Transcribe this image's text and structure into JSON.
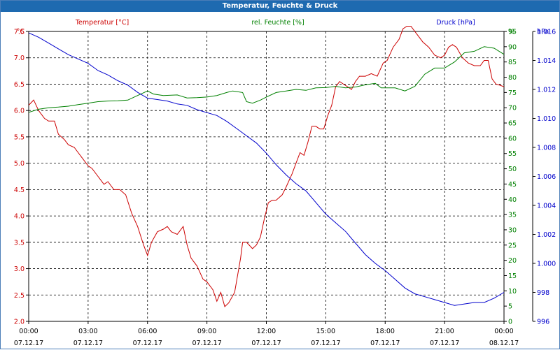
{
  "window": {
    "title": "Temperatur, Feuchte & Druck"
  },
  "chart_data": {
    "type": "line",
    "title": "Temperatur, Feuchte & Druck",
    "grid": true,
    "x_axis": {
      "ticks": [
        {
          "time": "00:00",
          "date": "07.12.17"
        },
        {
          "time": "03:00",
          "date": "07.12.17"
        },
        {
          "time": "06:00",
          "date": "07.12.17"
        },
        {
          "time": "09:00",
          "date": "07.12.17"
        },
        {
          "time": "12:00",
          "date": "07.12.17"
        },
        {
          "time": "15:00",
          "date": "07.12.17"
        },
        {
          "time": "18:00",
          "date": "07.12.17"
        },
        {
          "time": "21:00",
          "date": "07.12.17"
        },
        {
          "time": "00:00",
          "date": "08.12.17"
        }
      ],
      "range_hours": [
        0,
        24
      ]
    },
    "axes": {
      "temperature": {
        "unit": "°C",
        "min": 2.0,
        "max": 7.5,
        "ticks": [
          "2.0",
          "2.5",
          "3.0",
          "3.5",
          "4.0",
          "4.5",
          "5.0",
          "5.5",
          "6.0",
          "6.5",
          "7.0",
          "7.5"
        ]
      },
      "humidity": {
        "unit": "%",
        "min": 0,
        "max": 95,
        "ticks": [
          "0",
          "5",
          "10",
          "15",
          "20",
          "25",
          "30",
          "35",
          "40",
          "45",
          "50",
          "55",
          "60",
          "65",
          "70",
          "75",
          "80",
          "85",
          "90",
          "95"
        ]
      },
      "pressure": {
        "unit": "hPa",
        "min": 996,
        "max": 1016,
        "ticks": [
          "996",
          "998",
          "1.000",
          "1.002",
          "1.004",
          "1.006",
          "1.008",
          "1.010",
          "1.012",
          "1.014",
          "1.016"
        ]
      }
    },
    "colors": {
      "temperature": "#cc0000",
      "humidity": "#008000",
      "pressure": "#0000cc",
      "titlebar": "#1e6ab0"
    },
    "series": [
      {
        "name": "Temperatur [°C]",
        "axis": "temperature",
        "points": [
          [
            0,
            6.1
          ],
          [
            0.25,
            6.2
          ],
          [
            0.5,
            6.0
          ],
          [
            0.8,
            5.85
          ],
          [
            1.0,
            5.8
          ],
          [
            1.3,
            5.8
          ],
          [
            1.5,
            5.55
          ],
          [
            1.8,
            5.45
          ],
          [
            2.0,
            5.35
          ],
          [
            2.3,
            5.3
          ],
          [
            2.5,
            5.2
          ],
          [
            2.7,
            5.1
          ],
          [
            3.0,
            4.95
          ],
          [
            3.2,
            4.9
          ],
          [
            3.5,
            4.75
          ],
          [
            3.8,
            4.6
          ],
          [
            4.0,
            4.65
          ],
          [
            4.3,
            4.5
          ],
          [
            4.6,
            4.5
          ],
          [
            4.9,
            4.4
          ],
          [
            5.2,
            4.05
          ],
          [
            5.5,
            3.8
          ],
          [
            5.8,
            3.45
          ],
          [
            6.0,
            3.25
          ],
          [
            6.2,
            3.5
          ],
          [
            6.5,
            3.7
          ],
          [
            6.8,
            3.75
          ],
          [
            7.0,
            3.8
          ],
          [
            7.2,
            3.7
          ],
          [
            7.5,
            3.65
          ],
          [
            7.8,
            3.8
          ],
          [
            8.0,
            3.45
          ],
          [
            8.2,
            3.2
          ],
          [
            8.5,
            3.05
          ],
          [
            8.8,
            2.8
          ],
          [
            9.0,
            2.75
          ],
          [
            9.3,
            2.6
          ],
          [
            9.5,
            2.38
          ],
          [
            9.7,
            2.55
          ],
          [
            9.9,
            2.28
          ],
          [
            10.1,
            2.35
          ],
          [
            10.4,
            2.55
          ],
          [
            10.7,
            3.2
          ],
          [
            10.8,
            3.5
          ],
          [
            11.0,
            3.5
          ],
          [
            11.3,
            3.38
          ],
          [
            11.5,
            3.45
          ],
          [
            11.7,
            3.6
          ],
          [
            11.9,
            3.95
          ],
          [
            12.1,
            4.25
          ],
          [
            12.3,
            4.3
          ],
          [
            12.5,
            4.3
          ],
          [
            12.8,
            4.4
          ],
          [
            13.0,
            4.55
          ],
          [
            13.3,
            4.8
          ],
          [
            13.5,
            5.0
          ],
          [
            13.7,
            5.2
          ],
          [
            13.9,
            5.15
          ],
          [
            14.1,
            5.4
          ],
          [
            14.3,
            5.7
          ],
          [
            14.5,
            5.7
          ],
          [
            14.7,
            5.65
          ],
          [
            14.9,
            5.65
          ],
          [
            15.1,
            5.9
          ],
          [
            15.3,
            6.1
          ],
          [
            15.5,
            6.45
          ],
          [
            15.7,
            6.55
          ],
          [
            15.9,
            6.5
          ],
          [
            16.1,
            6.45
          ],
          [
            16.3,
            6.4
          ],
          [
            16.5,
            6.55
          ],
          [
            16.7,
            6.65
          ],
          [
            17.0,
            6.65
          ],
          [
            17.3,
            6.7
          ],
          [
            17.6,
            6.65
          ],
          [
            17.9,
            6.9
          ],
          [
            18.1,
            6.95
          ],
          [
            18.4,
            7.2
          ],
          [
            18.7,
            7.35
          ],
          [
            18.9,
            7.55
          ],
          [
            19.1,
            7.6
          ],
          [
            19.3,
            7.6
          ],
          [
            19.6,
            7.45
          ],
          [
            19.9,
            7.3
          ],
          [
            20.2,
            7.2
          ],
          [
            20.5,
            7.05
          ],
          [
            20.8,
            7.0
          ],
          [
            21.0,
            7.05
          ],
          [
            21.2,
            7.2
          ],
          [
            21.4,
            7.25
          ],
          [
            21.6,
            7.2
          ],
          [
            21.9,
            7.0
          ],
          [
            22.2,
            6.9
          ],
          [
            22.5,
            6.85
          ],
          [
            22.8,
            6.85
          ],
          [
            23.0,
            6.95
          ],
          [
            23.2,
            6.95
          ],
          [
            23.4,
            6.6
          ],
          [
            23.6,
            6.5
          ],
          [
            23.8,
            6.48
          ],
          [
            24.0,
            6.45
          ]
        ]
      },
      {
        "name": "rel. Feuchte [%]",
        "axis": "humidity",
        "points": [
          [
            0,
            68.5
          ],
          [
            0.5,
            69.5
          ],
          [
            1.0,
            70.0
          ],
          [
            1.5,
            70.2
          ],
          [
            2.0,
            70.5
          ],
          [
            2.5,
            71.0
          ],
          [
            3.0,
            71.5
          ],
          [
            3.5,
            72.0
          ],
          [
            4.0,
            72.2
          ],
          [
            4.5,
            72.3
          ],
          [
            5.0,
            72.5
          ],
          [
            5.5,
            74.0
          ],
          [
            6.0,
            75.5
          ],
          [
            6.3,
            74.5
          ],
          [
            6.8,
            74.0
          ],
          [
            7.5,
            74.2
          ],
          [
            8.0,
            73.2
          ],
          [
            8.5,
            73.3
          ],
          [
            9.0,
            73.5
          ],
          [
            9.5,
            74.0
          ],
          [
            10.0,
            75.0
          ],
          [
            10.3,
            75.5
          ],
          [
            10.8,
            75.0
          ],
          [
            11.0,
            72.0
          ],
          [
            11.3,
            71.5
          ],
          [
            11.7,
            72.5
          ],
          [
            12.0,
            73.5
          ],
          [
            12.5,
            75.0
          ],
          [
            13.0,
            75.5
          ],
          [
            13.5,
            76.0
          ],
          [
            14.0,
            75.7
          ],
          [
            14.5,
            76.5
          ],
          [
            15.0,
            76.6
          ],
          [
            15.5,
            77.0
          ],
          [
            16.0,
            76.5
          ],
          [
            16.5,
            76.8
          ],
          [
            17.0,
            77.5
          ],
          [
            17.5,
            78.0
          ],
          [
            17.8,
            76.5
          ],
          [
            18.2,
            76.5
          ],
          [
            18.5,
            76.5
          ],
          [
            19.0,
            75.5
          ],
          [
            19.5,
            77.0
          ],
          [
            20.0,
            81.0
          ],
          [
            20.5,
            83.0
          ],
          [
            21.0,
            83.0
          ],
          [
            21.5,
            85.0
          ],
          [
            22.0,
            88.0
          ],
          [
            22.5,
            88.5
          ],
          [
            23.0,
            90.0
          ],
          [
            23.5,
            89.5
          ],
          [
            24.0,
            87.5
          ]
        ]
      },
      {
        "name": "Druck [hPa]",
        "axis": "pressure",
        "points": [
          [
            0,
            1015.9
          ],
          [
            0.5,
            1015.6
          ],
          [
            1.0,
            1015.2
          ],
          [
            1.5,
            1014.8
          ],
          [
            2.0,
            1014.4
          ],
          [
            2.5,
            1014.1
          ],
          [
            3.0,
            1013.8
          ],
          [
            3.5,
            1013.3
          ],
          [
            4.0,
            1013.0
          ],
          [
            4.5,
            1012.6
          ],
          [
            5.0,
            1012.3
          ],
          [
            5.5,
            1011.8
          ],
          [
            6.0,
            1011.4
          ],
          [
            6.5,
            1011.3
          ],
          [
            7.0,
            1011.2
          ],
          [
            7.5,
            1011.0
          ],
          [
            8.0,
            1010.9
          ],
          [
            8.5,
            1010.6
          ],
          [
            9.0,
            1010.4
          ],
          [
            9.5,
            1010.2
          ],
          [
            10.0,
            1009.8
          ],
          [
            10.5,
            1009.3
          ],
          [
            11.0,
            1008.8
          ],
          [
            11.5,
            1008.3
          ],
          [
            12.0,
            1007.6
          ],
          [
            12.5,
            1006.8
          ],
          [
            13.0,
            1006.1
          ],
          [
            13.5,
            1005.5
          ],
          [
            14.0,
            1005.0
          ],
          [
            14.5,
            1004.2
          ],
          [
            15.0,
            1003.4
          ],
          [
            15.5,
            1002.8
          ],
          [
            16.0,
            1002.2
          ],
          [
            16.5,
            1001.4
          ],
          [
            17.0,
            1000.6
          ],
          [
            17.5,
            1000.0
          ],
          [
            18.0,
            999.5
          ],
          [
            18.5,
            998.9
          ],
          [
            19.0,
            998.3
          ],
          [
            19.5,
            997.9
          ],
          [
            20.0,
            997.7
          ],
          [
            20.5,
            997.5
          ],
          [
            21.0,
            997.3
          ],
          [
            21.5,
            997.1
          ],
          [
            22.0,
            997.2
          ],
          [
            22.5,
            997.3
          ],
          [
            23.0,
            997.3
          ],
          [
            23.5,
            997.6
          ],
          [
            24.0,
            998.0
          ]
        ]
      }
    ]
  }
}
